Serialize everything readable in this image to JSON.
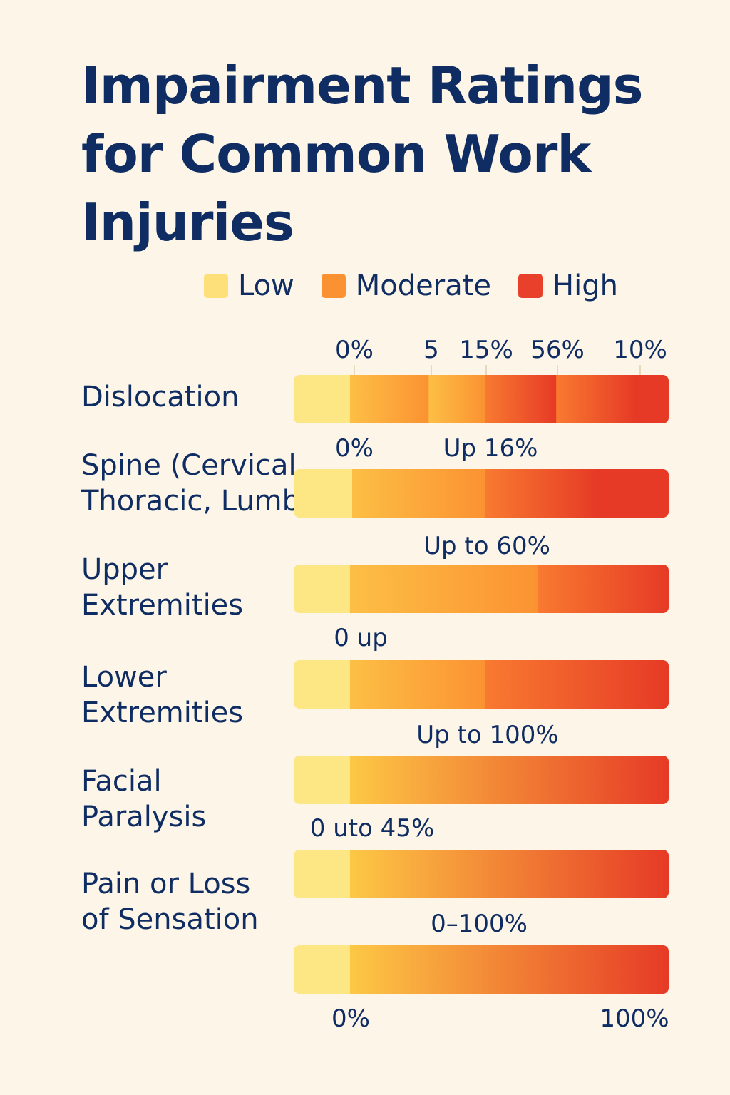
{
  "title_lines": [
    "Impairment Ratings",
    "for Common Work",
    "Injuries"
  ],
  "legend": [
    {
      "name": "Low",
      "color": "#fde07a"
    },
    {
      "name": "Moderate",
      "color": "#fb9232"
    },
    {
      "name": "High",
      "color": "#e8402a"
    }
  ],
  "colors": {
    "background": "#fdf6e8",
    "text": "#0f2d63",
    "low": "#fde784",
    "moderate_start": "#fdbf45",
    "moderate_end": "#fb9232",
    "high_start": "#f87a30",
    "high_end": "#e63a26"
  },
  "chart_data": {
    "type": "bar",
    "orientation": "horizontal",
    "title": "Impairment Ratings for Common Work Injuries",
    "legend_position": "top-right",
    "xlim": [
      0,
      100
    ],
    "rows": [
      {
        "label_lines": [
          "Dislocation"
        ],
        "annotations": [
          "0%",
          "5",
          "15%",
          "56%",
          "10%"
        ],
        "segments": [
          {
            "level": "Low",
            "end": 15
          },
          {
            "level": "Moderate",
            "end": 36
          },
          {
            "level": "Moderate",
            "end": 51
          },
          {
            "level": "High",
            "end": 70
          },
          {
            "level": "High",
            "end": 91
          },
          {
            "level": "High",
            "end": 100
          }
        ]
      },
      {
        "label_lines": [
          "Spine (Cervical,",
          "Thoracic, Lumbar)"
        ],
        "annotations": [
          "0%",
          "Up 16%"
        ],
        "segments": [
          {
            "level": "Low",
            "end": 15
          },
          {
            "level": "Moderate",
            "end": 51
          },
          {
            "level": "High",
            "end": 81
          },
          {
            "level": "High",
            "end": 100
          }
        ]
      },
      {
        "label_lines": [
          "Upper",
          "Extremities"
        ],
        "annotations": [
          "Up to 60%"
        ],
        "segments": [
          {
            "level": "Low",
            "end": 15
          },
          {
            "level": "Moderate",
            "end": 65
          },
          {
            "level": "High",
            "end": 100
          }
        ]
      },
      {
        "label_lines": [
          "Lower",
          "Extremities"
        ],
        "annotations": [
          "0 up"
        ],
        "segments": [
          {
            "level": "Low",
            "end": 15
          },
          {
            "level": "Moderate",
            "end": 51
          },
          {
            "level": "High",
            "end": 100
          }
        ]
      },
      {
        "label_lines": [
          "Facial",
          "Paralysis"
        ],
        "annotations": [
          "Up to 100%"
        ],
        "segments": [
          {
            "level": "Low",
            "end": 15
          },
          {
            "level": "Moderate-High",
            "end": 100
          }
        ]
      },
      {
        "label_lines": [
          "Pain or Loss",
          "of Sensation"
        ],
        "annotations": [
          "0 uto 45%"
        ],
        "segments": [
          {
            "level": "Low",
            "end": 15
          },
          {
            "level": "Moderate-High",
            "end": 100
          }
        ]
      },
      {
        "label_lines": [],
        "annotations": [
          "0–100%"
        ],
        "segments": [
          {
            "level": "Low",
            "end": 15
          },
          {
            "level": "Moderate-High",
            "end": 100
          }
        ]
      }
    ],
    "axis_ticks": [
      "0%",
      "100%"
    ]
  }
}
